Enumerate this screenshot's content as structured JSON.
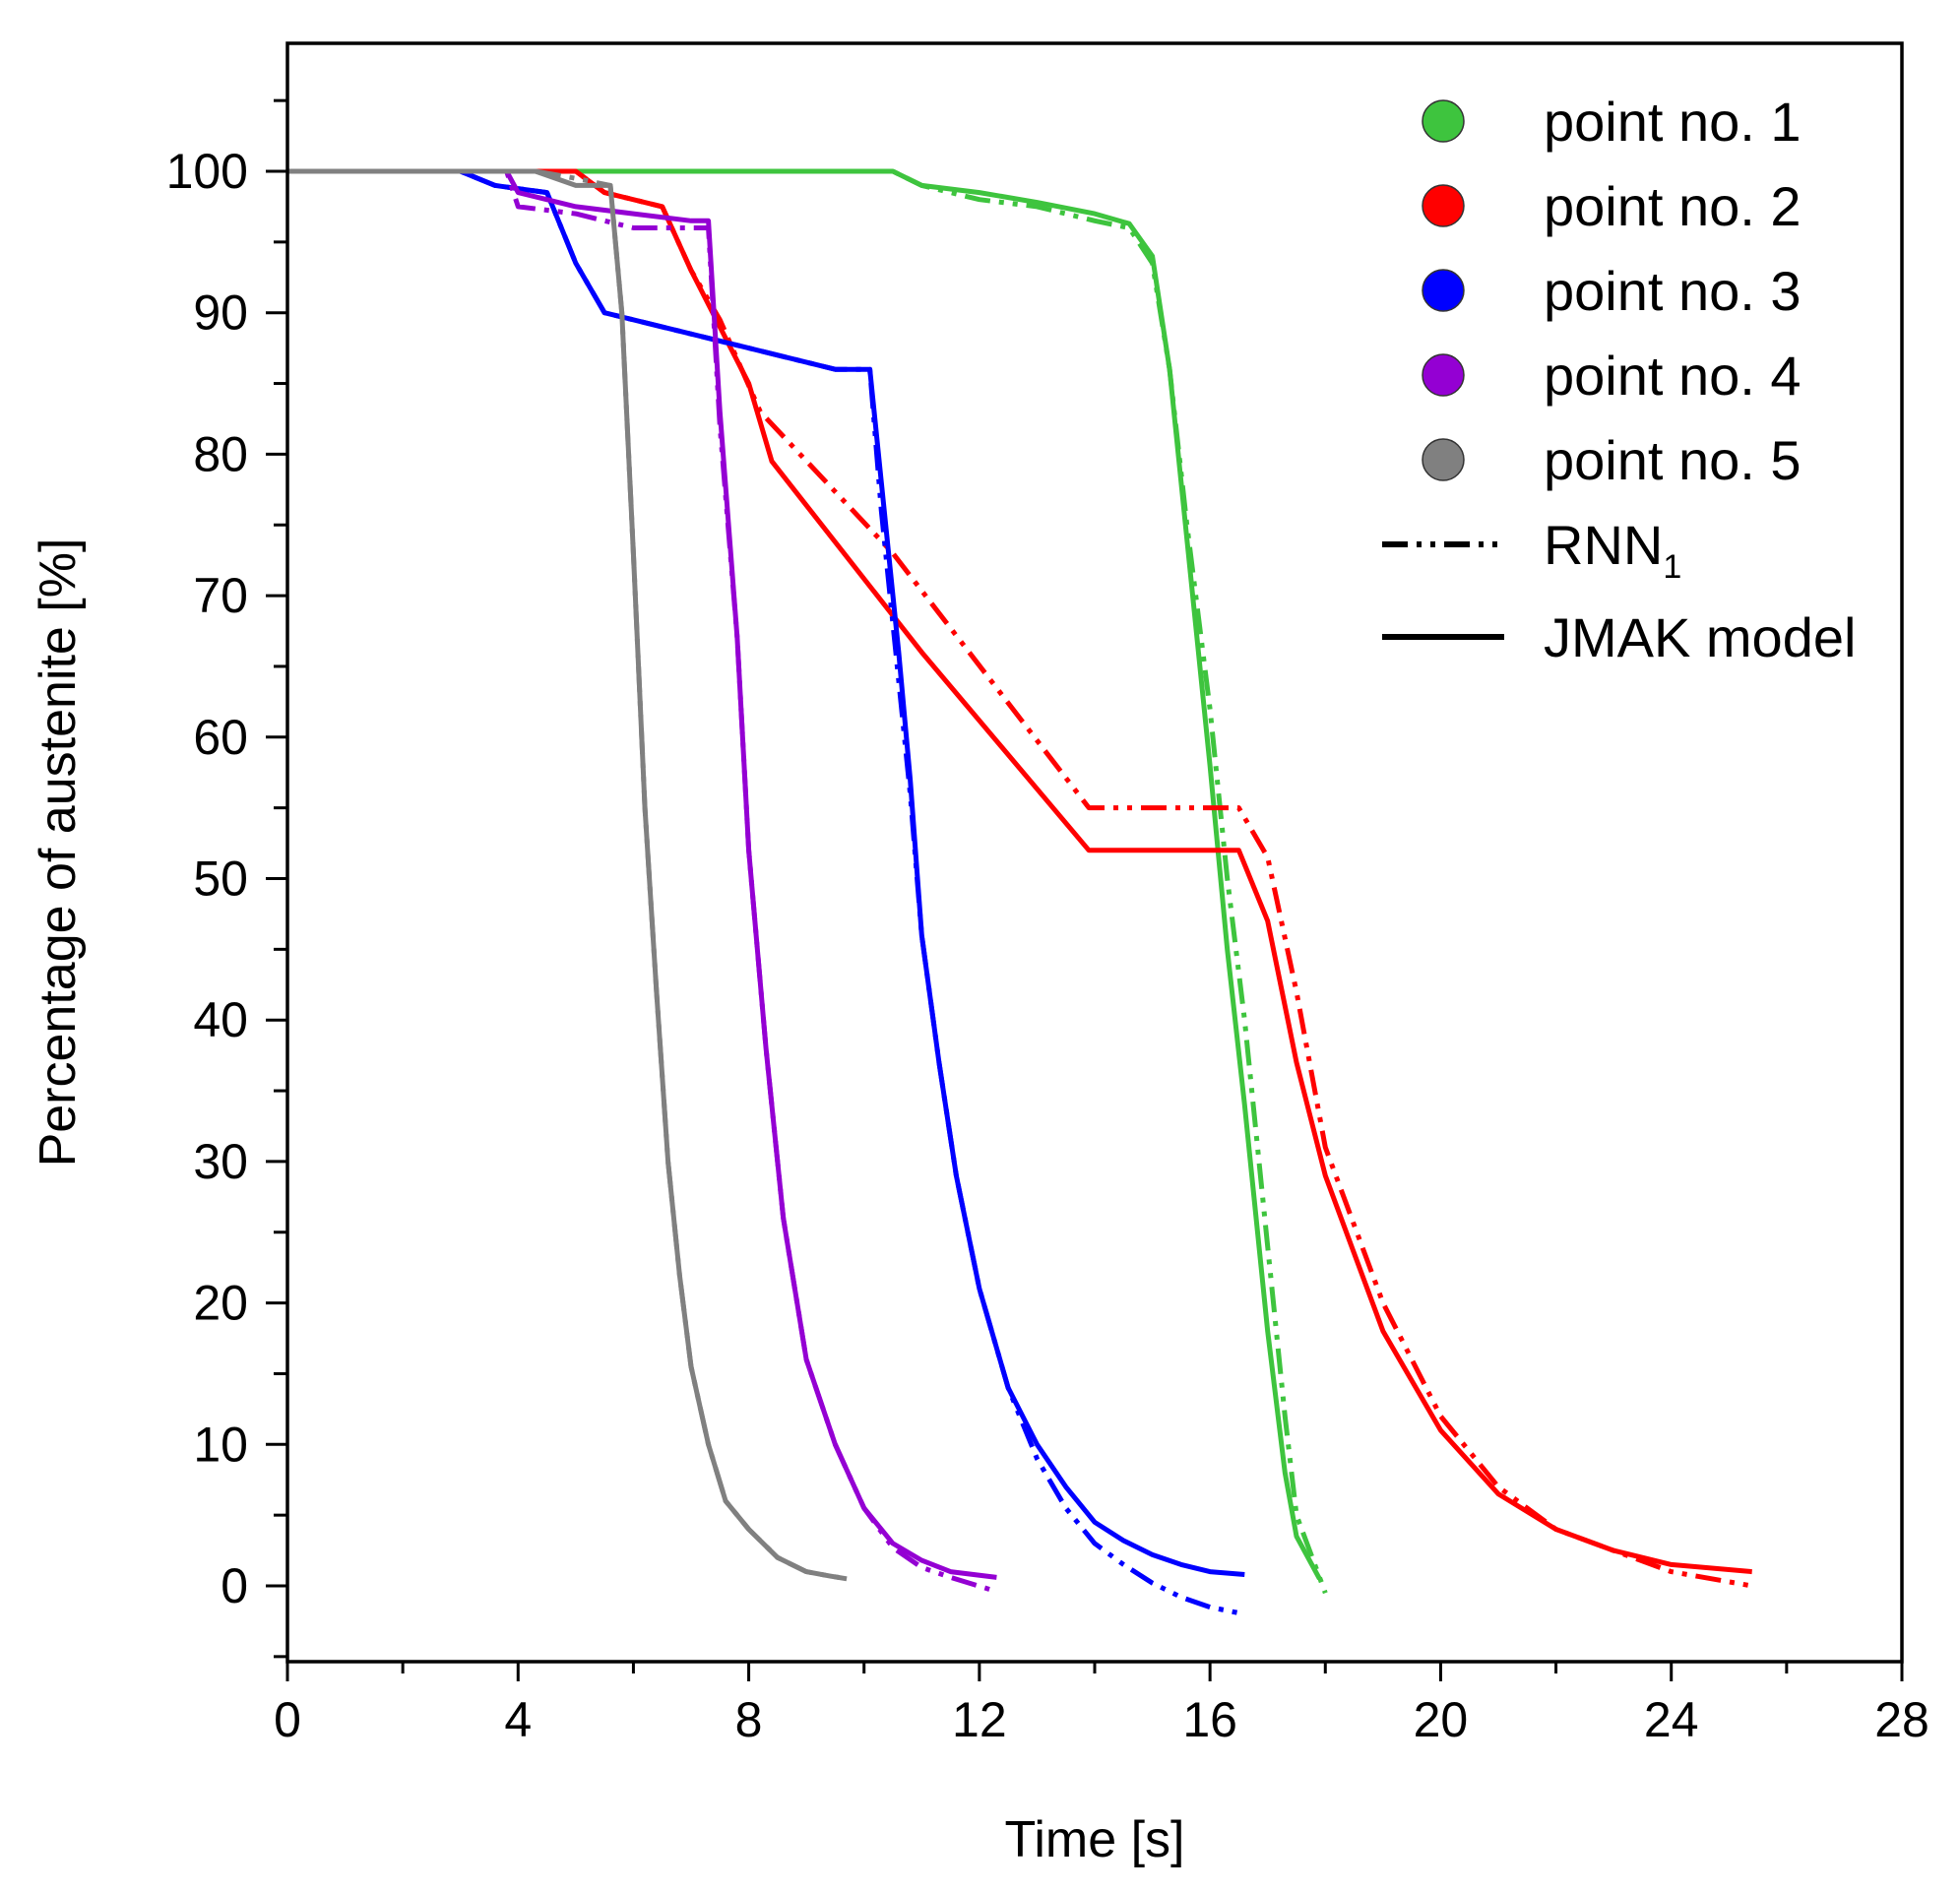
{
  "chart_data": {
    "type": "line",
    "title": "",
    "xlabel": "Time [s]",
    "ylabel": "Percentage of austenite [%]",
    "xlim": [
      0,
      28
    ],
    "ylim": [
      -5,
      105
    ],
    "xticks": [
      0,
      4,
      8,
      12,
      16,
      20,
      24,
      28
    ],
    "xtick_labels": [
      "0",
      "4",
      "8",
      "12",
      "16",
      "20",
      "24",
      "28"
    ],
    "yticks": [
      0,
      10,
      20,
      30,
      40,
      50,
      60,
      70,
      80,
      90,
      100
    ],
    "ytick_labels": [
      "0",
      "10",
      "20",
      "30",
      "40",
      "50",
      "60",
      "70",
      "80",
      "90",
      "100"
    ],
    "grid": false,
    "legend": {
      "position": "top-right",
      "points": [
        {
          "label": "point no. 1",
          "color": "#3ec43e"
        },
        {
          "label": "point no. 2",
          "color": "#ff0000"
        },
        {
          "label": "point no. 3",
          "color": "#0000ff"
        },
        {
          "label": "point no. 4",
          "color": "#9400d3"
        },
        {
          "label": "point no. 5",
          "color": "#808080"
        }
      ],
      "styles": [
        {
          "label_main": "RNN",
          "label_sub": "1",
          "style": "dash-dot-dot"
        },
        {
          "label_main": "JMAK model",
          "label_sub": "",
          "style": "solid"
        }
      ]
    },
    "series": [
      {
        "name": "point no. 1",
        "model": "JMAK model",
        "color": "#3ec43e",
        "style": "solid",
        "x": [
          0,
          10.5,
          11,
          12,
          13,
          14,
          14.6,
          15,
          15.3,
          15.6,
          16,
          16.3,
          16.6,
          17,
          17.3,
          17.5,
          17.9
        ],
        "y": [
          100,
          100,
          99,
          98.5,
          97.8,
          97,
          96.3,
          94,
          86,
          74,
          58,
          45,
          34,
          18,
          8,
          3.5,
          0.5
        ]
      },
      {
        "name": "point no. 1",
        "model": "RNN1",
        "color": "#3ec43e",
        "style": "dash-dot-dot",
        "x": [
          0,
          10.5,
          11,
          12,
          13,
          14,
          14.6,
          15,
          15.3,
          15.6,
          16,
          16.3,
          16.6,
          17,
          17.3,
          17.5,
          18
        ],
        "y": [
          100,
          100,
          99,
          98,
          97.5,
          96.5,
          96,
          93.5,
          86,
          75,
          62,
          50,
          40,
          24,
          12,
          5,
          -0.5
        ]
      },
      {
        "name": "point no. 2",
        "model": "JMAK model",
        "color": "#ff0000",
        "style": "solid",
        "x": [
          0,
          5,
          5.5,
          6.5,
          7,
          7.5,
          8,
          8.4,
          11,
          13.9,
          16.5,
          17,
          17.5,
          18,
          19,
          20,
          21,
          22,
          23,
          24,
          25.4
        ],
        "y": [
          100,
          100,
          98.5,
          97.5,
          93,
          89,
          85,
          79.5,
          66,
          52,
          52,
          47,
          37,
          29,
          18,
          11,
          6.5,
          4,
          2.5,
          1.5,
          1
        ]
      },
      {
        "name": "point no. 2",
        "model": "RNN1",
        "color": "#ff0000",
        "style": "dash-dot-dot",
        "x": [
          0,
          5,
          5.5,
          6.5,
          7,
          7.5,
          8.2,
          10.5,
          13.9,
          16.5,
          17,
          17.5,
          18,
          19,
          20,
          21,
          22,
          23,
          24,
          25.4
        ],
        "y": [
          100,
          100,
          98.5,
          97.5,
          93,
          89.5,
          83,
          73,
          55,
          55,
          51.5,
          42,
          31,
          20,
          12,
          7,
          4,
          2.5,
          1,
          0
        ]
      },
      {
        "name": "point no. 3",
        "model": "JMAK model",
        "color": "#0000ff",
        "style": "solid",
        "x": [
          0,
          3,
          3.6,
          4.5,
          5,
          5.5,
          8,
          9.5,
          10.1,
          10.3,
          10.6,
          10.8,
          11,
          11.3,
          11.6,
          12,
          12.5,
          13,
          13.5,
          14,
          14.5,
          15,
          15.5,
          16,
          16.6
        ],
        "y": [
          100,
          100,
          99,
          98.5,
          93.5,
          90,
          87.5,
          86,
          86,
          78,
          66,
          57,
          46,
          37,
          29,
          21,
          14,
          10,
          7,
          4.5,
          3.2,
          2.2,
          1.5,
          1,
          0.8
        ]
      },
      {
        "name": "point no. 3",
        "model": "RNN1",
        "color": "#0000ff",
        "style": "dash-dot-dot",
        "x": [
          0,
          3,
          3.6,
          4.5,
          5,
          5.5,
          8,
          9.5,
          10.1,
          10.3,
          10.6,
          10.8,
          11,
          11.3,
          11.6,
          12,
          12.5,
          13,
          13.5,
          14,
          14.5,
          15,
          15.5,
          16,
          16.6
        ],
        "y": [
          100,
          100,
          99,
          98.5,
          93.5,
          90,
          87.5,
          86,
          86,
          76,
          64,
          56,
          46,
          37,
          29,
          21,
          14,
          9,
          5.5,
          3,
          1.5,
          0.2,
          -0.8,
          -1.5,
          -2
        ]
      },
      {
        "name": "point no. 4",
        "model": "JMAK model",
        "color": "#9400d3",
        "style": "solid",
        "x": [
          0,
          3.8,
          4,
          5,
          6,
          7,
          7.3,
          7.5,
          7.8,
          8,
          8.3,
          8.6,
          9,
          9.5,
          10,
          10.5,
          11,
          11.5,
          12.3
        ],
        "y": [
          100,
          100,
          98.5,
          97.5,
          97,
          96.5,
          96.5,
          83,
          67,
          52,
          38,
          26,
          16,
          10,
          5.5,
          3,
          1.8,
          1,
          0.6
        ]
      },
      {
        "name": "point no. 4",
        "model": "RNN1",
        "color": "#9400d3",
        "style": "dash-dot-dot",
        "x": [
          0,
          3.8,
          4,
          5,
          6,
          7,
          7.3,
          7.5,
          7.8,
          8,
          8.3,
          8.6,
          9,
          9.5,
          10,
          10.5,
          11,
          11.5,
          12.3
        ],
        "y": [
          100,
          100,
          97.5,
          97,
          96,
          96,
          96,
          82,
          67,
          52,
          38,
          26,
          16,
          10,
          5.5,
          2.7,
          1.3,
          0.6,
          -0.4
        ]
      },
      {
        "name": "point no. 5",
        "model": "JMAK model",
        "color": "#808080",
        "style": "solid",
        "x": [
          0,
          4.3,
          5,
          5.6,
          5.8,
          6,
          6.2,
          6.4,
          6.6,
          6.8,
          7,
          7.3,
          7.6,
          8,
          8.5,
          9,
          9.4,
          9.7
        ],
        "y": [
          100,
          100,
          99,
          99,
          90,
          73,
          55,
          42,
          30,
          22,
          15.5,
          10,
          6,
          4,
          2,
          1,
          0.7,
          0.5
        ]
      },
      {
        "name": "point no. 5",
        "model": "RNN1",
        "color": "#808080",
        "style": "dash-dot-dot",
        "x": [
          0,
          4.3,
          5,
          5.6,
          5.8,
          6,
          6.2,
          6.4,
          6.6,
          6.8,
          7,
          7.3,
          7.6,
          8,
          8.5,
          9,
          9.4,
          9.7
        ],
        "y": [
          100,
          100,
          99.5,
          99,
          90,
          73,
          55,
          42,
          30,
          22,
          15.5,
          10,
          6,
          4,
          2,
          1,
          0.7,
          0.5
        ]
      }
    ]
  }
}
